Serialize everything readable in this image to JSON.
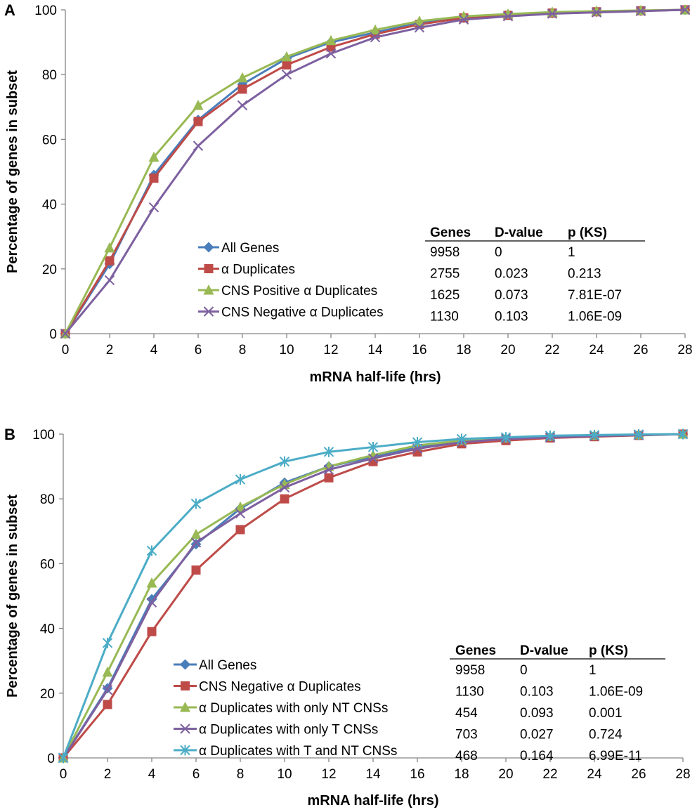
{
  "chart_data": [
    {
      "type": "line",
      "panel_label": "A",
      "xlabel": "mRNA half-life (hrs)",
      "ylabel": "Percentage of genes in subset",
      "xlim": [
        0,
        28
      ],
      "ylim": [
        0,
        100
      ],
      "x": [
        0,
        2,
        4,
        6,
        8,
        10,
        12,
        14,
        16,
        18,
        20,
        22,
        24,
        26,
        28
      ],
      "x_ticks": [
        "0",
        "2",
        "4",
        "6",
        "8",
        "10",
        "12",
        "14",
        "16",
        "18",
        "20",
        "22",
        "24",
        "26",
        "28"
      ],
      "y_ticks": [
        "0",
        "20",
        "40",
        "60",
        "80",
        "100"
      ],
      "series": [
        {
          "name": "All Genes",
          "color": "#4a7ebb",
          "marker": "diamond",
          "values": [
            0,
            21.5,
            49,
            66,
            77,
            85,
            90,
            93,
            96,
            97.5,
            98.5,
            99,
            99.4,
            99.7,
            100
          ]
        },
        {
          "name": "α Duplicates",
          "color": "#be4b48",
          "marker": "square",
          "values": [
            0,
            22.5,
            48,
            65.5,
            75.5,
            83,
            88.5,
            92.5,
            95.5,
            97.5,
            98.3,
            99,
            99.4,
            99.7,
            100
          ]
        },
        {
          "name": "CNS Positive α Duplicates",
          "color": "#98b954",
          "marker": "triangle",
          "values": [
            0,
            26.5,
            54.5,
            70.5,
            79,
            85.5,
            90.5,
            93.8,
            96.5,
            98,
            98.7,
            99.3,
            99.6,
            99.8,
            100
          ]
        },
        {
          "name": "CNS Negative α Duplicates",
          "color": "#7d60a0",
          "marker": "x",
          "values": [
            0,
            16.5,
            39,
            58,
            70.5,
            80,
            86.5,
            91.5,
            94.5,
            97,
            98,
            98.8,
            99.2,
            99.6,
            100
          ]
        }
      ],
      "table": {
        "headers": [
          "Genes",
          "D-value",
          "p (KS)"
        ],
        "rows": [
          [
            "9958",
            "0",
            "1"
          ],
          [
            "2755",
            "0.023",
            "0.213"
          ],
          [
            "1625",
            "0.073",
            "7.81E-07"
          ],
          [
            "1130",
            "0.103",
            "1.06E-09"
          ]
        ]
      }
    },
    {
      "type": "line",
      "panel_label": "B",
      "xlabel": "mRNA half-life (hrs)",
      "ylabel": "Percentage of genes in subset",
      "xlim": [
        0,
        28
      ],
      "ylim": [
        0,
        100
      ],
      "x": [
        0,
        2,
        4,
        6,
        8,
        10,
        12,
        14,
        16,
        18,
        20,
        22,
        24,
        26,
        28
      ],
      "x_ticks": [
        "0",
        "2",
        "4",
        "6",
        "8",
        "10",
        "12",
        "14",
        "16",
        "18",
        "20",
        "22",
        "24",
        "26",
        "28"
      ],
      "y_ticks": [
        "0",
        "20",
        "40",
        "60",
        "80",
        "100"
      ],
      "series": [
        {
          "name": "All Genes",
          "color": "#4a7ebb",
          "marker": "diamond",
          "values": [
            0,
            21.5,
            49,
            66,
            77,
            85,
            90,
            93,
            96,
            97.5,
            98.5,
            99,
            99.4,
            99.7,
            100
          ]
        },
        {
          "name": "CNS Negative α Duplicates",
          "color": "#be4b48",
          "marker": "square",
          "values": [
            0,
            16.5,
            39,
            58,
            70.5,
            80,
            86.5,
            91.5,
            94.5,
            97,
            98,
            98.8,
            99.2,
            99.6,
            100
          ]
        },
        {
          "name": "α Duplicates with only NT CNSs",
          "color": "#98b954",
          "marker": "triangle",
          "values": [
            0,
            26.5,
            54,
            69,
            77.5,
            84.5,
            90,
            93.5,
            96.5,
            98,
            98.8,
            99.3,
            99.6,
            99.8,
            100
          ]
        },
        {
          "name": "α Duplicates with only T CNSs",
          "color": "#7d60a0",
          "marker": "x",
          "values": [
            0,
            21,
            48,
            66.5,
            75.5,
            83.5,
            89,
            92.5,
            95.5,
            97.5,
            98.5,
            99,
            99.4,
            99.7,
            100
          ]
        },
        {
          "name": "α Duplicates with T and NT CNSs",
          "color": "#4bacc6",
          "marker": "star",
          "values": [
            0,
            35.5,
            64,
            78.5,
            86,
            91.5,
            94.5,
            96,
            97.5,
            98.5,
            99,
            99.5,
            99.7,
            99.9,
            100
          ]
        }
      ],
      "table": {
        "headers": [
          "Genes",
          "D-value",
          "p (KS)"
        ],
        "rows": [
          [
            "9958",
            "0",
            "1"
          ],
          [
            "1130",
            "0.103",
            "1.06E-09"
          ],
          [
            "454",
            "0.093",
            "0.001"
          ],
          [
            "703",
            "0.027",
            "0.724"
          ],
          [
            "468",
            "0.164",
            "6.99E-11"
          ]
        ]
      }
    }
  ]
}
